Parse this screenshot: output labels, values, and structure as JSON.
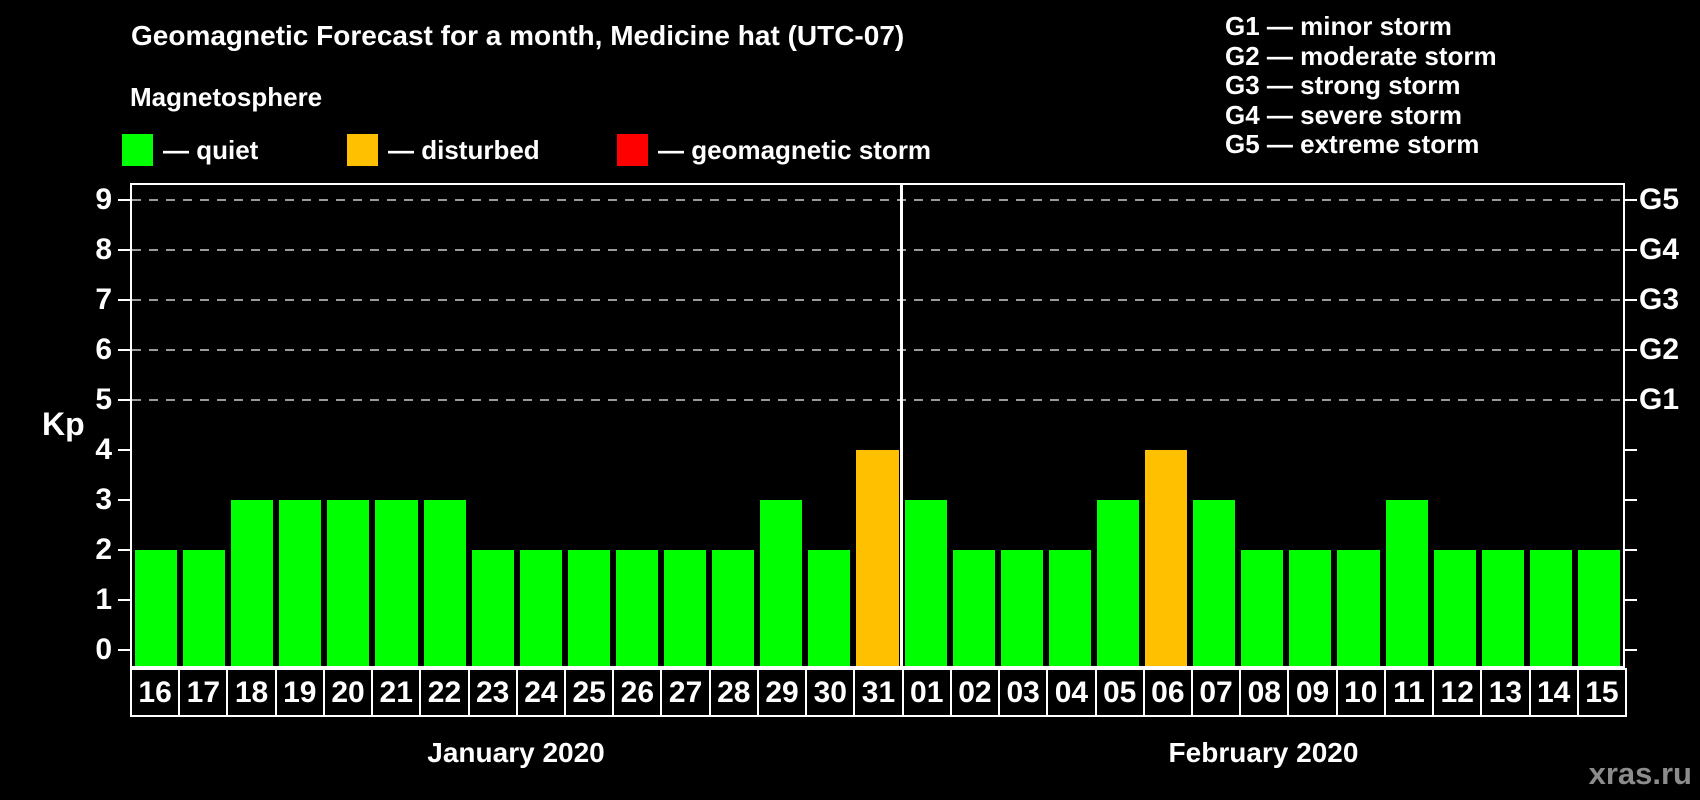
{
  "chart_data": {
    "type": "bar",
    "title": "Geomagnetic Forecast for a month, Medicine hat (UTC-07)",
    "legend_title": "Magnetosphere",
    "legend": [
      {
        "name": "quiet",
        "label": "— quiet",
        "color": "#00FF00"
      },
      {
        "name": "disturbed",
        "label": "— disturbed",
        "color": "#FFC000"
      },
      {
        "name": "geomagnetic-storm",
        "label": "— geomagnetic storm",
        "color": "#FF0000"
      }
    ],
    "g_scale_legend": [
      "G1 — minor storm",
      "G2 — moderate storm",
      "G3 — strong storm",
      "G4 — severe storm",
      "G5 — extreme storm"
    ],
    "ylabel": "Kp",
    "ylim": [
      0,
      9
    ],
    "yticks": [
      0,
      1,
      2,
      3,
      4,
      5,
      6,
      7,
      8,
      9
    ],
    "gridlines_at": [
      5,
      6,
      7,
      8,
      9
    ],
    "right_axis": [
      {
        "kp": 5,
        "label": "G1"
      },
      {
        "kp": 6,
        "label": "G2"
      },
      {
        "kp": 7,
        "label": "G3"
      },
      {
        "kp": 8,
        "label": "G4"
      },
      {
        "kp": 9,
        "label": "G5"
      }
    ],
    "colors": {
      "quiet": "#00FF00",
      "disturbed": "#FFC000",
      "storm": "#FF0000"
    },
    "months": [
      {
        "label": "January 2020",
        "days": [
          {
            "day": "16",
            "kp": 2,
            "status": "quiet"
          },
          {
            "day": "17",
            "kp": 2,
            "status": "quiet"
          },
          {
            "day": "18",
            "kp": 3,
            "status": "quiet"
          },
          {
            "day": "19",
            "kp": 3,
            "status": "quiet"
          },
          {
            "day": "20",
            "kp": 3,
            "status": "quiet"
          },
          {
            "day": "21",
            "kp": 3,
            "status": "quiet"
          },
          {
            "day": "22",
            "kp": 3,
            "status": "quiet"
          },
          {
            "day": "23",
            "kp": 2,
            "status": "quiet"
          },
          {
            "day": "24",
            "kp": 2,
            "status": "quiet"
          },
          {
            "day": "25",
            "kp": 2,
            "status": "quiet"
          },
          {
            "day": "26",
            "kp": 2,
            "status": "quiet"
          },
          {
            "day": "27",
            "kp": 2,
            "status": "quiet"
          },
          {
            "day": "28",
            "kp": 2,
            "status": "quiet"
          },
          {
            "day": "29",
            "kp": 3,
            "status": "quiet"
          },
          {
            "day": "30",
            "kp": 2,
            "status": "quiet"
          },
          {
            "day": "31",
            "kp": 4,
            "status": "disturbed"
          }
        ]
      },
      {
        "label": "February 2020",
        "days": [
          {
            "day": "01",
            "kp": 3,
            "status": "quiet"
          },
          {
            "day": "02",
            "kp": 2,
            "status": "quiet"
          },
          {
            "day": "03",
            "kp": 2,
            "status": "quiet"
          },
          {
            "day": "04",
            "kp": 2,
            "status": "quiet"
          },
          {
            "day": "05",
            "kp": 3,
            "status": "quiet"
          },
          {
            "day": "06",
            "kp": 4,
            "status": "disturbed"
          },
          {
            "day": "07",
            "kp": 3,
            "status": "quiet"
          },
          {
            "day": "08",
            "kp": 2,
            "status": "quiet"
          },
          {
            "day": "09",
            "kp": 2,
            "status": "quiet"
          },
          {
            "day": "10",
            "kp": 2,
            "status": "quiet"
          },
          {
            "day": "11",
            "kp": 3,
            "status": "quiet"
          },
          {
            "day": "12",
            "kp": 2,
            "status": "quiet"
          },
          {
            "day": "13",
            "kp": 2,
            "status": "quiet"
          },
          {
            "day": "14",
            "kp": 2,
            "status": "quiet"
          },
          {
            "day": "15",
            "kp": 2,
            "status": "quiet"
          }
        ]
      }
    ]
  },
  "watermark": "xras.ru"
}
